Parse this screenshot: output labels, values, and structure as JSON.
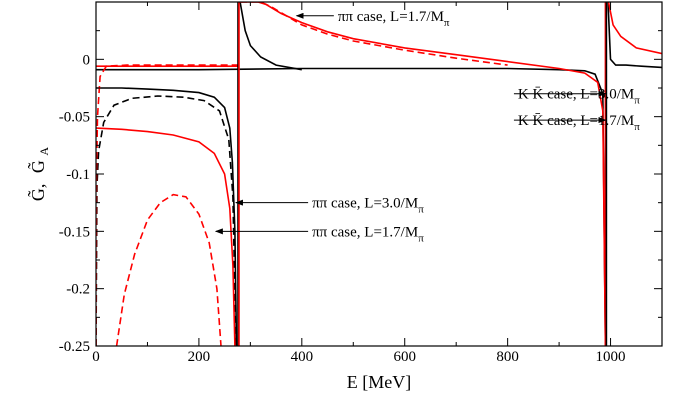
{
  "chart_data": {
    "type": "line",
    "xlabel": "E [MeV]",
    "ylabel": "G̃,  G̃A",
    "ylabel_parts": [
      "G̃,",
      "G̃"
    ],
    "ylabel_sub": "A",
    "xlim": [
      0,
      1100
    ],
    "ylim": [
      -0.25,
      0.05
    ],
    "x_ticks": [
      0,
      200,
      400,
      600,
      800,
      1000
    ],
    "y_ticks": [
      0,
      -0.05,
      -0.1,
      -0.15,
      -0.2,
      -0.25
    ],
    "x_tick_labels": [
      "0",
      "200",
      "400",
      "600",
      "800",
      "1000"
    ],
    "y_tick_labels": [
      "0",
      "-0.05",
      "-0.1",
      "-0.15",
      "-0.2",
      "-0.25"
    ],
    "grid": false,
    "series": [
      {
        "color": "#000000",
        "dash": "solid",
        "segments": [
          [
            [
              0,
              -0.025
            ],
            [
              50,
              -0.025
            ],
            [
              100,
              -0.026
            ],
            [
              150,
              -0.027
            ],
            [
              200,
              -0.029
            ],
            [
              230,
              -0.033
            ],
            [
              250,
              -0.042
            ],
            [
              260,
              -0.06
            ],
            [
              265,
              -0.09
            ],
            [
              270,
              -0.15
            ],
            [
              273,
              -0.25
            ]
          ],
          [
            [
              280,
              0.05
            ],
            [
              290,
              0.025
            ],
            [
              300,
              0.012
            ],
            [
              320,
              0.002
            ],
            [
              350,
              -0.005
            ],
            [
              400,
              -0.009
            ]
          ],
          [
            [
              0,
              -0.009
            ],
            [
              200,
              -0.009
            ],
            [
              400,
              -0.008
            ],
            [
              600,
              -0.008
            ],
            [
              800,
              -0.008
            ],
            [
              900,
              -0.009
            ],
            [
              950,
              -0.01
            ],
            [
              970,
              -0.013
            ],
            [
              985,
              -0.03
            ],
            [
              990,
              -0.25
            ]
          ],
          [
            [
              995,
              0.05
            ],
            [
              1000,
              0.0
            ],
            [
              1010,
              -0.005
            ],
            [
              1030,
              -0.005
            ],
            [
              1060,
              -0.006
            ],
            [
              1100,
              -0.007
            ]
          ]
        ]
      },
      {
        "color": "#000000",
        "dash": "dashed",
        "segments": [
          [
            [
              0,
              -0.25
            ],
            [
              2,
              -0.11
            ],
            [
              5,
              -0.08
            ],
            [
              15,
              -0.055
            ],
            [
              35,
              -0.04
            ],
            [
              70,
              -0.034
            ],
            [
              120,
              -0.032
            ],
            [
              170,
              -0.033
            ],
            [
              210,
              -0.036
            ],
            [
              240,
              -0.045
            ],
            [
              258,
              -0.07
            ],
            [
              266,
              -0.12
            ],
            [
              272,
              -0.25
            ]
          ]
        ]
      },
      {
        "color": "#ff0000",
        "dash": "solid",
        "segments": [
          [
            [
              0,
              -0.06
            ],
            [
              50,
              -0.061
            ],
            [
              100,
              -0.063
            ],
            [
              150,
              -0.066
            ],
            [
              200,
              -0.072
            ],
            [
              230,
              -0.082
            ],
            [
              250,
              -0.1
            ],
            [
              260,
              -0.13
            ],
            [
              266,
              -0.18
            ],
            [
              270,
              -0.25
            ]
          ],
          [
            [
              280,
              0.05
            ],
            [
              300,
              0.05
            ],
            [
              315,
              0.05
            ],
            [
              330,
              0.048
            ],
            [
              360,
              0.04
            ],
            [
              400,
              0.032
            ],
            [
              450,
              0.024
            ],
            [
              500,
              0.018
            ],
            [
              600,
              0.01
            ],
            [
              700,
              0.004
            ],
            [
              800,
              -0.002
            ],
            [
              900,
              -0.008
            ],
            [
              950,
              -0.012
            ],
            [
              975,
              -0.02
            ],
            [
              985,
              -0.045
            ],
            [
              990,
              -0.25
            ]
          ],
          [
            [
              996,
              0.05
            ],
            [
              1005,
              0.03
            ],
            [
              1020,
              0.02
            ],
            [
              1050,
              0.01
            ],
            [
              1100,
              0.005
            ]
          ],
          [
            [
              0,
              -0.006
            ],
            [
              50,
              -0.006
            ],
            [
              200,
              -0.006
            ],
            [
              278,
              -0.006
            ]
          ]
        ]
      },
      {
        "color": "#ff0000",
        "dash": "dashed",
        "segments": [
          [
            [
              40,
              -0.25
            ],
            [
              55,
              -0.205
            ],
            [
              75,
              -0.17
            ],
            [
              100,
              -0.14
            ],
            [
              125,
              -0.125
            ],
            [
              150,
              -0.118
            ],
            [
              175,
              -0.12
            ],
            [
              200,
              -0.135
            ],
            [
              220,
              -0.16
            ],
            [
              235,
              -0.2
            ],
            [
              243,
              -0.25
            ]
          ],
          [
            [
              0,
              -0.25
            ],
            [
              1,
              -0.1
            ],
            [
              3,
              -0.05
            ],
            [
              8,
              -0.015
            ],
            [
              20,
              -0.006
            ],
            [
              60,
              -0.005
            ],
            [
              278,
              -0.005
            ]
          ],
          [
            [
              280,
              0.05
            ],
            [
              300,
              0.05
            ],
            [
              320,
              0.05
            ],
            [
              340,
              0.046
            ],
            [
              370,
              0.038
            ],
            [
              400,
              0.03
            ],
            [
              450,
              0.022
            ],
            [
              500,
              0.016
            ],
            [
              600,
              0.008
            ],
            [
              700,
              0.001
            ],
            [
              800,
              -0.005
            ]
          ]
        ]
      },
      {
        "color": "#000000",
        "dash": "solid",
        "vertical": true,
        "segments": [
          [
            [
              276,
              -0.25
            ],
            [
              276,
              0.05
            ]
          ]
        ]
      },
      {
        "color": "#ff0000",
        "dash": "solid",
        "vertical": true,
        "segments": [
          [
            [
              278,
              -0.25
            ],
            [
              278,
              0.05
            ]
          ],
          [
            [
              990,
              -0.25
            ],
            [
              990,
              0.05
            ]
          ]
        ]
      },
      {
        "color": "#000000",
        "dash": "solid",
        "vertical": true,
        "segments": [
          [
            [
              992,
              -0.25
            ],
            [
              992,
              0.05
            ]
          ]
        ]
      }
    ],
    "annotations": [
      {
        "main": "ππ case, L=1.7/M",
        "sub": "π",
        "x": 470,
        "y": 0.038,
        "arrow_to": [
          390,
          0.038
        ]
      },
      {
        "main": "K K̄ case, L=3.0/M",
        "sub": "π",
        "x": 820,
        "y": -0.03,
        "arrow_to": [
          990,
          -0.03
        ]
      },
      {
        "main": "K K̄ case, L=1.7/M",
        "sub": "π",
        "x": 820,
        "y": -0.053,
        "arrow_to": [
          990,
          -0.053
        ]
      },
      {
        "main": "ππ case, L=3.0/M",
        "sub": "π",
        "x": 420,
        "y": -0.125,
        "arrow_to": [
          272,
          -0.125
        ]
      },
      {
        "main": "ππ case, L=1.7/M",
        "sub": "π",
        "x": 420,
        "y": -0.15,
        "arrow_to": [
          233,
          -0.15
        ]
      }
    ]
  }
}
